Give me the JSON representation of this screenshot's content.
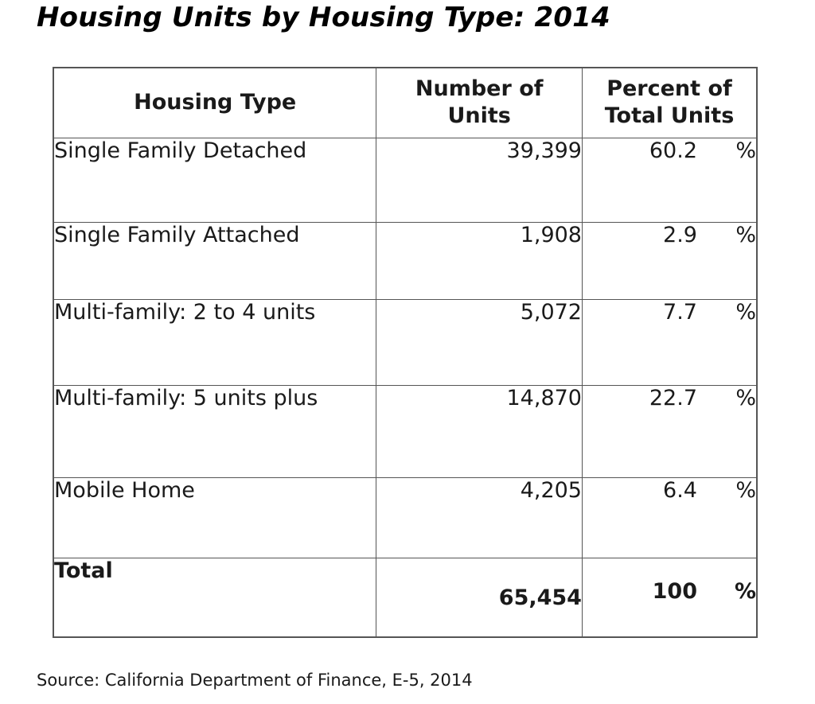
{
  "title": "Housing Units by Housing Type: 2014",
  "table": {
    "headers": {
      "type": "Housing Type",
      "units_line1": "Number of",
      "units_line2": "Units",
      "percent_line1": "Percent of",
      "percent_line2": "Total Units"
    },
    "rows": [
      {
        "type": "Single Family Detached",
        "units": "39,399",
        "percent": "60.2",
        "sign": "%"
      },
      {
        "type": "Single Family Attached",
        "units": "1,908",
        "percent": "2.9",
        "sign": "%"
      },
      {
        "type": "Multi-family: 2 to 4 units",
        "units": "5,072",
        "percent": "7.7",
        "sign": "%"
      },
      {
        "type": "Multi-family: 5 units plus",
        "units": "14,870",
        "percent": "22.7",
        "sign": "%"
      },
      {
        "type": "Mobile Home",
        "units": "4,205",
        "percent": "6.4",
        "sign": "%"
      }
    ],
    "total": {
      "type": "Total",
      "units": "65,454",
      "percent": "100",
      "sign": "%"
    }
  },
  "source": "Source: California Department of Finance, E-5, 2014"
}
